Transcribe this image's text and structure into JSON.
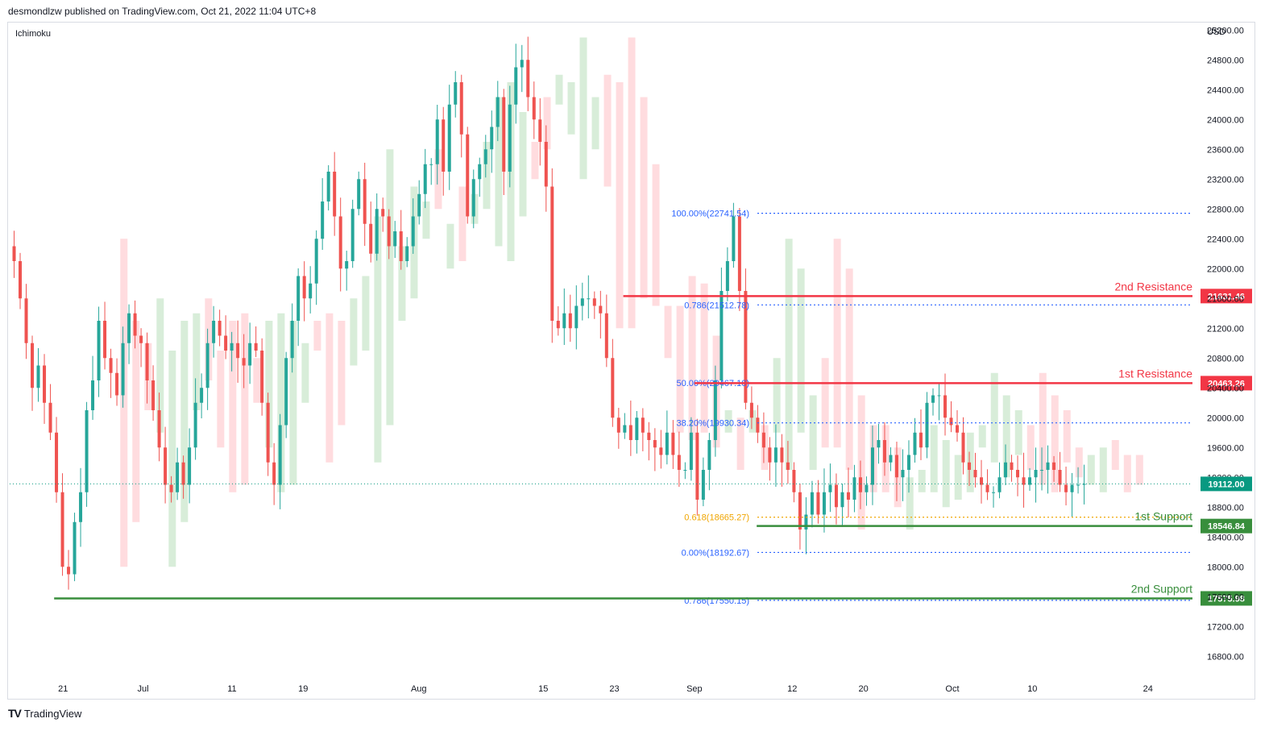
{
  "header": {
    "published_text": "desmondlzw published on TradingView.com, Oct 21, 2022 11:04 UTC+8"
  },
  "indicator_label": "Ichimoku",
  "footer": {
    "logo_text": "TV",
    "brand": "TradingView"
  },
  "chart_data": {
    "type": "candlestick",
    "currency": "USD",
    "ylim": [
      16500,
      25300
    ],
    "y_ticks": [
      "16800.00",
      "17200.00",
      "17600.00",
      "18000.00",
      "18400.00",
      "18800.00",
      "19200.00",
      "19600.00",
      "20000.00",
      "20400.00",
      "20800.00",
      "21200.00",
      "21600.00",
      "22000.00",
      "22400.00",
      "22800.00",
      "23200.00",
      "23600.00",
      "24000.00",
      "24400.00",
      "24800.00",
      "25200.00"
    ],
    "y_tick_values": [
      16800,
      17200,
      17600,
      18000,
      18400,
      18800,
      19200,
      19600,
      20000,
      20400,
      20800,
      21200,
      21600,
      22000,
      22400,
      22800,
      23200,
      23600,
      24000,
      24400,
      24800,
      25200
    ],
    "x_ticks": [
      "21",
      "Jul",
      "11",
      "19",
      "Aug",
      "15",
      "23",
      "Sep",
      "12",
      "20",
      "Oct",
      "10",
      "24"
    ],
    "x_tick_days": [
      6,
      15,
      25,
      33,
      46,
      60,
      68,
      77,
      88,
      96,
      106,
      115,
      128
    ],
    "x_domain_days": [
      0,
      133
    ],
    "x_start_date": "2022-06-15",
    "closes": [
      22100,
      21600,
      21000,
      20400,
      20700,
      20200,
      19800,
      19000,
      18000,
      17900,
      18600,
      19000,
      20100,
      20500,
      21300,
      20800,
      20600,
      20300,
      21000,
      21400,
      21100,
      21000,
      20500,
      20100,
      19600,
      19100,
      19000,
      19400,
      19100,
      19600,
      20200,
      20400,
      21000,
      21300,
      21100,
      20900,
      21000,
      20800,
      20700,
      21000,
      20900,
      20200,
      19400,
      19100,
      19900,
      20800,
      21300,
      21900,
      21600,
      21800,
      22400,
      22900,
      23300,
      22700,
      22000,
      22100,
      22800,
      23200,
      22600,
      22200,
      22800,
      22700,
      22300,
      22500,
      22100,
      22300,
      22700,
      23000,
      23400,
      23400,
      24000,
      23300,
      24200,
      24500,
      23800,
      22700,
      23200,
      23400,
      23600,
      23900,
      24300,
      23300,
      24200,
      24700,
      24800,
      24300,
      24000,
      23700,
      23100,
      21300,
      21200,
      21400,
      21200,
      21500,
      21600,
      21600,
      21500,
      21400,
      20800,
      20000,
      19800,
      19900,
      19700,
      20000,
      19800,
      19700,
      19600,
      19500,
      19800,
      19500,
      19300,
      19300,
      19800,
      18900,
      19300,
      19700,
      20500,
      21700,
      22100,
      22700,
      21700,
      20200,
      20000,
      19800,
      19600,
      19400,
      19600,
      19400,
      19300,
      19000,
      18500,
      18700,
      19000,
      18700,
      19000,
      19100,
      18800,
      19000,
      18900,
      19200,
      19000,
      19100,
      19600,
      19700,
      19400,
      19500,
      19200,
      19300,
      19500,
      19800,
      19600,
      20200,
      20300,
      20300,
      20000,
      19900,
      19800,
      19400,
      19300,
      19200,
      19100,
      19000,
      19000,
      19200,
      19400,
      19300,
      19200,
      19100,
      19200,
      19300,
      19300,
      19400,
      19300,
      19100,
      19000,
      19100,
      19100,
      19112
    ],
    "last_price": "19112.00",
    "fibonacci": [
      {
        "label": "100.00%(22741.54)",
        "value": 22741.54,
        "color": "#2962ff"
      },
      {
        "label": "0.786(21512.78)",
        "value": 21512.78,
        "color": "#2962ff"
      },
      {
        "label": "50.00%(20467.10)",
        "value": 20467.1,
        "color": "#2962ff"
      },
      {
        "label": "38.20%(19930.34)",
        "value": 19930.34,
        "color": "#2962ff"
      },
      {
        "label": "0.618(18665.27)",
        "value": 18665.27,
        "color": "#f0a500"
      },
      {
        "label": "0.00%(18192.67)",
        "value": 18192.67,
        "color": "#2962ff"
      },
      {
        "label": "0.786(17550.15)",
        "value": 17550.15,
        "color": "#2962ff"
      }
    ],
    "levels": [
      {
        "name": "2nd Resistance",
        "value": 21631.46,
        "price_label": "21631.46",
        "color": "#f23645",
        "start_day": 69
      },
      {
        "name": "1st Resistance",
        "value": 20463.26,
        "price_label": "20463.26",
        "color": "#f23645",
        "start_day": 77
      },
      {
        "name": "1st Support",
        "value": 18546.84,
        "price_label": "18546.84",
        "color": "#388e3c",
        "start_day": 84
      },
      {
        "name": "2nd Support",
        "value": 17575.98,
        "price_label": "17575.98",
        "color": "#388e3c",
        "start_day": 5
      }
    ],
    "colors": {
      "up": "#26a69a",
      "down": "#ef5350",
      "resistance": "#f23645",
      "support": "#388e3c",
      "fib": "#2962ff",
      "last_price_bg": "#089981",
      "cloud_green": "#c8e6c9",
      "cloud_red": "#ffcdd2"
    }
  }
}
